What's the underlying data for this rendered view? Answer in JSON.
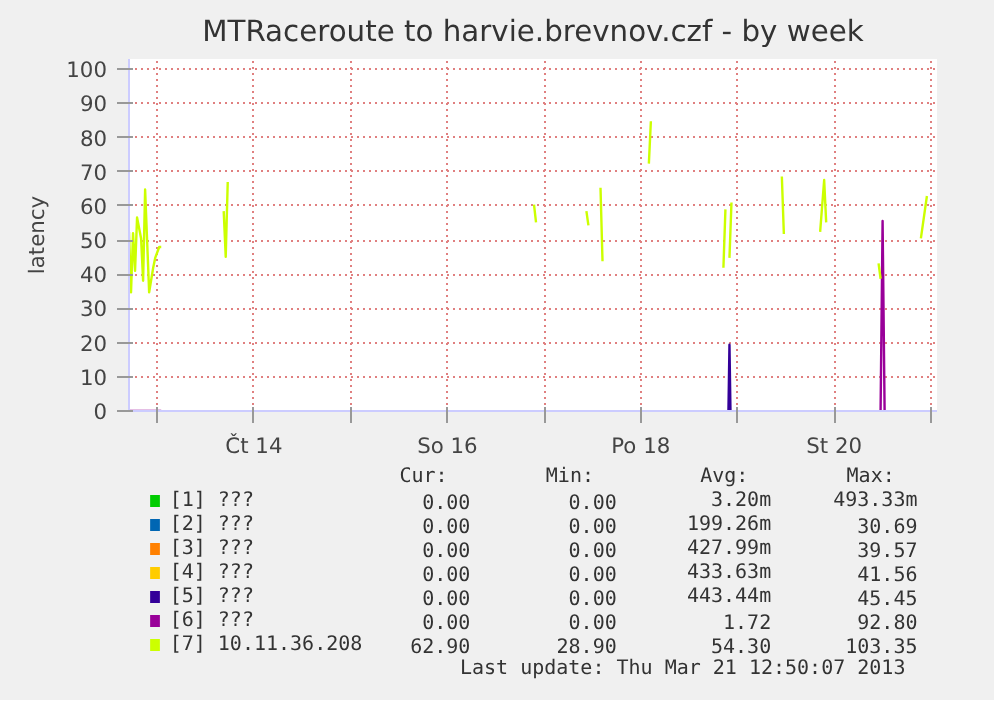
{
  "chart_data": {
    "type": "line",
    "title": "MTRaceroute to harvie.brevnov.czf - by week",
    "ylabel": "latency",
    "xlim": [
      "2013-03-12T17:00",
      "2013-03-21T01:30"
    ],
    "xticks": [
      {
        "value": "2013-03-13",
        "label": null
      },
      {
        "value": "2013-03-14",
        "label": "Čt 14"
      },
      {
        "value": "2013-03-15",
        "label": null
      },
      {
        "value": "2013-03-16",
        "label": "So 16"
      },
      {
        "value": "2013-03-17",
        "label": null
      },
      {
        "value": "2013-03-18",
        "label": "Po 18"
      },
      {
        "value": "2013-03-19",
        "label": null
      },
      {
        "value": "2013-03-20",
        "label": "St 20"
      },
      {
        "value": "2013-03-21",
        "label": null
      }
    ],
    "ylim": [
      0,
      103
    ],
    "yticks": [
      0,
      10,
      20,
      30,
      40,
      50,
      60,
      70,
      80,
      90,
      100
    ],
    "grid": true,
    "legend": "bottom",
    "marker": "none",
    "line_style": "solid",
    "series": [
      {
        "name": "[1] ???",
        "color": "#00cc00"
      },
      {
        "name": "[2] ???",
        "color": "#0066b3"
      },
      {
        "name": "[3] ???",
        "color": "#ff8000"
      },
      {
        "name": "[4] ???",
        "color": "#ffcc00"
      },
      {
        "name": "[5] ???",
        "color": "#330099",
        "x": [
          "2013-03-18T21:45",
          "2013-03-18T22:00",
          "2013-03-18T22:15"
        ],
        "values": [
          0,
          19.4,
          0
        ]
      },
      {
        "name": "[6] ???",
        "color": "#990099",
        "x": [
          "2013-03-12T17:00",
          "2013-03-13T01:00",
          "2013-03-13T01:30",
          "2013-03-20T11:30",
          "2013-03-20T12:00",
          "2013-03-20T12:30"
        ],
        "values": [
          0,
          0,
          null,
          0,
          55.6,
          0
        ]
      },
      {
        "name": "[7] 10.11.36.208",
        "color": "#ccff00",
        "x": [
          "2013-03-12T17:00",
          "2013-03-12T17:30",
          "2013-03-12T18:00",
          "2013-03-12T18:30",
          "2013-03-12T19:00",
          "2013-03-12T20:00",
          "2013-03-12T20:30",
          "2013-03-12T21:00",
          "2013-03-12T22:00",
          "2013-03-12T23:00",
          "2013-03-12T23:30",
          "2013-03-13T00:30",
          "2013-03-13T01:00",
          "2013-03-13T01:30",
          "2013-03-13T16:30",
          "2013-03-13T17:00",
          "2013-03-13T17:30",
          "2013-03-13T18:00",
          "2013-03-16T21:30",
          "2013-03-16T22:00",
          "2013-03-16T22:30",
          "2013-03-17T10:30",
          "2013-03-17T11:00",
          "2013-03-17T11:30",
          "2013-03-17T14:00",
          "2013-03-17T14:30",
          "2013-03-17T15:00",
          "2013-03-18T02:00",
          "2013-03-18T02:30",
          "2013-03-18T03:00",
          "2013-03-18T20:30",
          "2013-03-18T21:00",
          "2013-03-18T21:30",
          "2013-03-18T22:00",
          "2013-03-18T22:30",
          "2013-03-18T23:00",
          "2013-03-19T11:00",
          "2013-03-19T11:30",
          "2013-03-19T12:00",
          "2013-03-19T20:30",
          "2013-03-19T21:30",
          "2013-03-19T22:00",
          "2013-03-19T22:30",
          "2013-03-20T11:00",
          "2013-03-20T11:30",
          "2013-03-20T12:00",
          "2013-03-20T21:30",
          "2013-03-20T23:00"
        ],
        "values": [
          52.4,
          34.7,
          52,
          41,
          56.6,
          50.5,
          38.1,
          64.8,
          34.7,
          41.9,
          44.8,
          48,
          48,
          null,
          58.5,
          45.1,
          67,
          null,
          60.4,
          55.2,
          null,
          58.5,
          54.3,
          null,
          65.3,
          43.8,
          null,
          72.4,
          84.8,
          null,
          41.9,
          59,
          null,
          44.8,
          61,
          null,
          68.6,
          51.8,
          null,
          52.4,
          67.6,
          55.2,
          null,
          43.2,
          38.7,
          null,
          50.5,
          62.9
        ]
      }
    ],
    "annotations": [
      "Cur:",
      "Min:",
      "Avg:",
      "Max:",
      "0.00",
      "0.00",
      "3.20m",
      "493.33m",
      "0.00",
      "0.00",
      "199.26m",
      "30.69",
      "0.00",
      "0.00",
      "427.99m",
      "39.57",
      "0.00",
      "0.00",
      "433.63m",
      "41.56",
      "0.00",
      "0.00",
      "443.44m",
      "45.45",
      "0.00",
      "0.00",
      "1.72",
      "92.80",
      "62.90",
      "28.90",
      "54.30",
      "103.35",
      "Last update:  Thu Mar 21 12:50:07 2013"
    ]
  }
}
